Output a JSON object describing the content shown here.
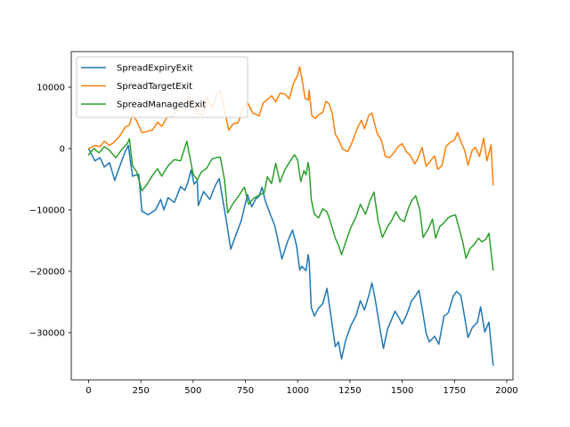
{
  "chart_data": {
    "type": "line",
    "title": "",
    "xlabel": "",
    "ylabel": "",
    "xlim": [
      -83,
      2030
    ],
    "ylim": [
      -37700,
      15800
    ],
    "xticks": [
      0,
      250,
      500,
      750,
      1000,
      1250,
      1500,
      1750,
      2000
    ],
    "yticks": [
      -30000,
      -20000,
      -10000,
      0,
      10000
    ],
    "grid": false,
    "legend_position": "upper-left",
    "series": [
      {
        "name": "SpreadExpiryExit",
        "color": "#1f77b4",
        "points": [
          [
            0,
            0
          ],
          [
            30,
            -2000
          ],
          [
            55,
            -1500
          ],
          [
            75,
            -3000
          ],
          [
            100,
            -2300
          ],
          [
            125,
            -5200
          ],
          [
            150,
            -2800
          ],
          [
            175,
            -500
          ],
          [
            190,
            500
          ],
          [
            210,
            -4500
          ],
          [
            240,
            -4200
          ],
          [
            255,
            -10200
          ],
          [
            285,
            -10800
          ],
          [
            320,
            -10000
          ],
          [
            345,
            -8300
          ],
          [
            360,
            -10000
          ],
          [
            380,
            -8000
          ],
          [
            410,
            -8800
          ],
          [
            440,
            -6200
          ],
          [
            460,
            -6800
          ],
          [
            475,
            -5500
          ],
          [
            490,
            -3500
          ],
          [
            505,
            -5800
          ],
          [
            520,
            -5200
          ],
          [
            525,
            -9300
          ],
          [
            550,
            -7000
          ],
          [
            580,
            -8300
          ],
          [
            605,
            -6100
          ],
          [
            625,
            -4900
          ],
          [
            660,
            -12000
          ],
          [
            680,
            -16400
          ],
          [
            700,
            -14500
          ],
          [
            730,
            -11800
          ],
          [
            760,
            -7500
          ],
          [
            780,
            -9500
          ],
          [
            800,
            -8200
          ],
          [
            815,
            -7800
          ],
          [
            830,
            -6300
          ],
          [
            845,
            -8500
          ],
          [
            870,
            -10800
          ],
          [
            890,
            -12500
          ],
          [
            925,
            -18000
          ],
          [
            950,
            -15300
          ],
          [
            975,
            -13300
          ],
          [
            995,
            -15800
          ],
          [
            1010,
            -19800
          ],
          [
            1020,
            -19200
          ],
          [
            1040,
            -19900
          ],
          [
            1050,
            -17300
          ],
          [
            1055,
            -18300
          ],
          [
            1065,
            -25900
          ],
          [
            1080,
            -27300
          ],
          [
            1100,
            -26000
          ],
          [
            1120,
            -25300
          ],
          [
            1140,
            -22800
          ],
          [
            1160,
            -27500
          ],
          [
            1180,
            -32300
          ],
          [
            1195,
            -31500
          ],
          [
            1210,
            -34300
          ],
          [
            1230,
            -31200
          ],
          [
            1255,
            -28800
          ],
          [
            1280,
            -27200
          ],
          [
            1300,
            -24800
          ],
          [
            1320,
            -26300
          ],
          [
            1340,
            -24000
          ],
          [
            1355,
            -21900
          ],
          [
            1370,
            -24400
          ],
          [
            1395,
            -29600
          ],
          [
            1410,
            -32600
          ],
          [
            1430,
            -29400
          ],
          [
            1450,
            -27800
          ],
          [
            1465,
            -26500
          ],
          [
            1480,
            -27300
          ],
          [
            1500,
            -28600
          ],
          [
            1520,
            -27200
          ],
          [
            1545,
            -24800
          ],
          [
            1560,
            -24200
          ],
          [
            1580,
            -23100
          ],
          [
            1595,
            -26000
          ],
          [
            1615,
            -30200
          ],
          [
            1630,
            -31500
          ],
          [
            1655,
            -30600
          ],
          [
            1675,
            -31900
          ],
          [
            1700,
            -27300
          ],
          [
            1720,
            -26800
          ],
          [
            1745,
            -24000
          ],
          [
            1760,
            -23300
          ],
          [
            1780,
            -23900
          ],
          [
            1795,
            -26700
          ],
          [
            1815,
            -30800
          ],
          [
            1835,
            -29200
          ],
          [
            1860,
            -28300
          ],
          [
            1875,
            -25800
          ],
          [
            1895,
            -29900
          ],
          [
            1915,
            -28300
          ],
          [
            1935,
            -35300
          ]
        ]
      },
      {
        "name": "SpreadTargetExit",
        "color": "#ff7f0e",
        "points": [
          [
            0,
            0
          ],
          [
            30,
            500
          ],
          [
            55,
            300
          ],
          [
            75,
            1200
          ],
          [
            100,
            500
          ],
          [
            120,
            1000
          ],
          [
            150,
            2100
          ],
          [
            175,
            3500
          ],
          [
            195,
            3800
          ],
          [
            210,
            5600
          ],
          [
            230,
            4500
          ],
          [
            255,
            2600
          ],
          [
            280,
            2800
          ],
          [
            305,
            3000
          ],
          [
            330,
            4300
          ],
          [
            350,
            3600
          ],
          [
            375,
            5100
          ],
          [
            400,
            5200
          ],
          [
            430,
            6500
          ],
          [
            455,
            6500
          ],
          [
            480,
            8500
          ],
          [
            505,
            6800
          ],
          [
            525,
            5700
          ],
          [
            545,
            5400
          ],
          [
            565,
            8300
          ],
          [
            590,
            6700
          ],
          [
            610,
            8600
          ],
          [
            630,
            9500
          ],
          [
            655,
            5500
          ],
          [
            670,
            3000
          ],
          [
            690,
            4000
          ],
          [
            715,
            4200
          ],
          [
            740,
            6600
          ],
          [
            760,
            7500
          ],
          [
            785,
            5800
          ],
          [
            800,
            5600
          ],
          [
            815,
            5300
          ],
          [
            835,
            7400
          ],
          [
            855,
            8000
          ],
          [
            875,
            8600
          ],
          [
            895,
            7600
          ],
          [
            915,
            9000
          ],
          [
            940,
            8900
          ],
          [
            960,
            8100
          ],
          [
            980,
            10600
          ],
          [
            1000,
            12000
          ],
          [
            1010,
            13300
          ],
          [
            1025,
            10500
          ],
          [
            1035,
            8200
          ],
          [
            1050,
            7900
          ],
          [
            1055,
            9500
          ],
          [
            1068,
            5300
          ],
          [
            1085,
            4900
          ],
          [
            1100,
            5500
          ],
          [
            1120,
            5900
          ],
          [
            1135,
            7700
          ],
          [
            1150,
            7300
          ],
          [
            1165,
            5800
          ],
          [
            1180,
            2300
          ],
          [
            1195,
            1500
          ],
          [
            1215,
            -100
          ],
          [
            1240,
            -500
          ],
          [
            1260,
            1000
          ],
          [
            1285,
            3300
          ],
          [
            1305,
            4600
          ],
          [
            1320,
            3200
          ],
          [
            1340,
            5400
          ],
          [
            1355,
            5800
          ],
          [
            1380,
            2500
          ],
          [
            1400,
            1400
          ],
          [
            1420,
            -1300
          ],
          [
            1440,
            -1500
          ],
          [
            1460,
            -700
          ],
          [
            1480,
            300
          ],
          [
            1500,
            800
          ],
          [
            1520,
            -500
          ],
          [
            1540,
            -1200
          ],
          [
            1560,
            -2500
          ],
          [
            1575,
            -1600
          ],
          [
            1595,
            200
          ],
          [
            1615,
            -2900
          ],
          [
            1640,
            -1800
          ],
          [
            1655,
            -1200
          ],
          [
            1670,
            -3400
          ],
          [
            1690,
            -2800
          ],
          [
            1710,
            400
          ],
          [
            1730,
            1000
          ],
          [
            1750,
            1400
          ],
          [
            1765,
            2600
          ],
          [
            1780,
            1200
          ],
          [
            1800,
            -400
          ],
          [
            1815,
            -2700
          ],
          [
            1835,
            -300
          ],
          [
            1850,
            200
          ],
          [
            1870,
            -1300
          ],
          [
            1890,
            1700
          ],
          [
            1905,
            -2000
          ],
          [
            1925,
            600
          ],
          [
            1935,
            -5900
          ]
        ]
      },
      {
        "name": "SpreadManagedExit",
        "color": "#2ca02c",
        "points": [
          [
            0,
            -1000
          ],
          [
            25,
            0
          ],
          [
            50,
            -700
          ],
          [
            75,
            300
          ],
          [
            100,
            -300
          ],
          [
            130,
            -1500
          ],
          [
            160,
            -100
          ],
          [
            185,
            800
          ],
          [
            195,
            1600
          ],
          [
            210,
            -2800
          ],
          [
            230,
            -3800
          ],
          [
            255,
            -6900
          ],
          [
            280,
            -5800
          ],
          [
            305,
            -4400
          ],
          [
            330,
            -3300
          ],
          [
            350,
            -4500
          ],
          [
            380,
            -2800
          ],
          [
            410,
            -1800
          ],
          [
            440,
            -2000
          ],
          [
            470,
            1200
          ],
          [
            500,
            -4200
          ],
          [
            520,
            -5100
          ],
          [
            540,
            -3800
          ],
          [
            565,
            -3200
          ],
          [
            590,
            -1700
          ],
          [
            610,
            -1500
          ],
          [
            630,
            -1400
          ],
          [
            650,
            -5100
          ],
          [
            665,
            -10500
          ],
          [
            690,
            -9000
          ],
          [
            720,
            -7600
          ],
          [
            745,
            -6300
          ],
          [
            765,
            -9100
          ],
          [
            790,
            -8100
          ],
          [
            815,
            -7600
          ],
          [
            840,
            -7200
          ],
          [
            855,
            -4600
          ],
          [
            875,
            -5700
          ],
          [
            895,
            -2400
          ],
          [
            915,
            -5500
          ],
          [
            940,
            -3400
          ],
          [
            965,
            -2000
          ],
          [
            985,
            -1000
          ],
          [
            1000,
            -1900
          ],
          [
            1015,
            -5400
          ],
          [
            1030,
            -3600
          ],
          [
            1040,
            -4300
          ],
          [
            1050,
            -2300
          ],
          [
            1055,
            -3200
          ],
          [
            1065,
            -8300
          ],
          [
            1080,
            -10700
          ],
          [
            1100,
            -11300
          ],
          [
            1120,
            -9800
          ],
          [
            1140,
            -10300
          ],
          [
            1160,
            -12300
          ],
          [
            1180,
            -14600
          ],
          [
            1195,
            -15700
          ],
          [
            1210,
            -17300
          ],
          [
            1230,
            -15200
          ],
          [
            1255,
            -12800
          ],
          [
            1280,
            -11100
          ],
          [
            1300,
            -9100
          ],
          [
            1325,
            -10700
          ],
          [
            1345,
            -8600
          ],
          [
            1365,
            -7100
          ],
          [
            1385,
            -11800
          ],
          [
            1405,
            -14500
          ],
          [
            1430,
            -12700
          ],
          [
            1450,
            -11700
          ],
          [
            1470,
            -10300
          ],
          [
            1490,
            -11500
          ],
          [
            1510,
            -11900
          ],
          [
            1530,
            -9700
          ],
          [
            1545,
            -8500
          ],
          [
            1565,
            -7700
          ],
          [
            1585,
            -10100
          ],
          [
            1600,
            -14500
          ],
          [
            1625,
            -13100
          ],
          [
            1645,
            -11500
          ],
          [
            1660,
            -14600
          ],
          [
            1680,
            -12700
          ],
          [
            1700,
            -12100
          ],
          [
            1720,
            -11300
          ],
          [
            1735,
            -11000
          ],
          [
            1755,
            -10800
          ],
          [
            1775,
            -13300
          ],
          [
            1790,
            -15300
          ],
          [
            1805,
            -17900
          ],
          [
            1825,
            -16300
          ],
          [
            1845,
            -15600
          ],
          [
            1865,
            -14600
          ],
          [
            1880,
            -15200
          ],
          [
            1900,
            -14800
          ],
          [
            1915,
            -13800
          ],
          [
            1935,
            -19800
          ]
        ]
      }
    ]
  }
}
